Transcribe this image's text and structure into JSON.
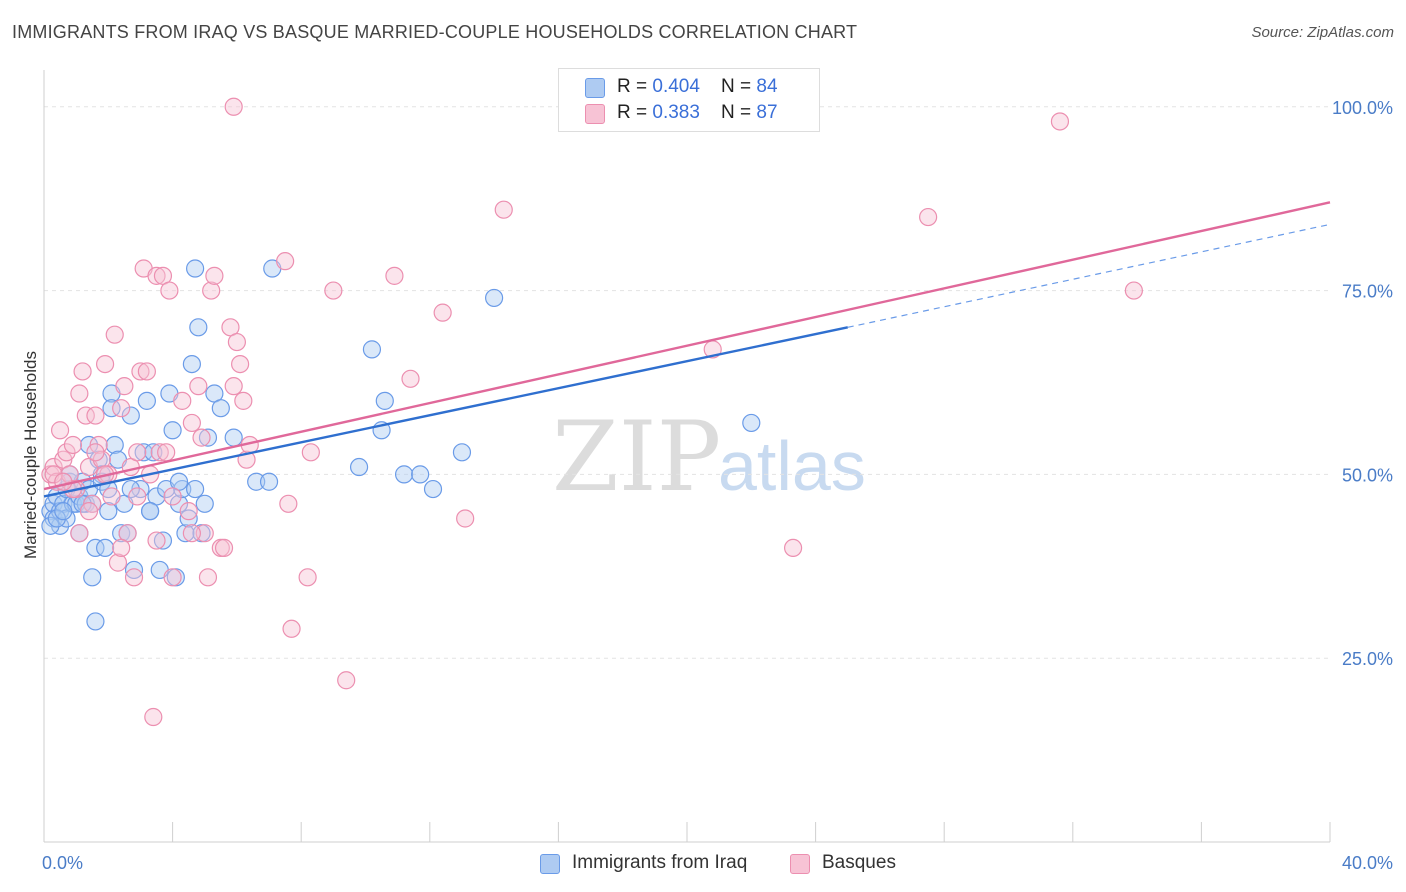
{
  "header": {
    "title": "IMMIGRANTS FROM IRAQ VS BASQUE MARRIED-COUPLE HOUSEHOLDS CORRELATION CHART",
    "source": "Source: ZipAtlas.com"
  },
  "legend": {
    "series1": {
      "r_label": "R = ",
      "r_value": "0.404",
      "n_label": "N = ",
      "n_value": "84"
    },
    "series2": {
      "r_label": "R = ",
      "r_value": "0.383",
      "n_label": "N = ",
      "n_value": "87"
    }
  },
  "watermark": {
    "zip": "ZIP",
    "atlas": "atlas"
  },
  "chart_data": {
    "type": "scatter",
    "title": "IMMIGRANTS FROM IRAQ VS BASQUE MARRIED-COUPLE HOUSEHOLDS CORRELATION CHART",
    "xlabel": "",
    "ylabel": "Married-couple Households",
    "xlim": [
      0,
      40
    ],
    "ylim": [
      0,
      105
    ],
    "x_tick_labels": [
      "0.0%",
      "40.0%"
    ],
    "y_ticks": [
      25,
      50,
      75,
      100
    ],
    "y_tick_labels": [
      "25.0%",
      "50.0%",
      "75.0%",
      "100.0%"
    ],
    "legend_position": "bottom-center",
    "series": [
      {
        "name": "Immigrants from Iraq",
        "color": "#6a9be8",
        "fill": "#aecbf2",
        "trend": {
          "x": [
            0,
            25
          ],
          "y": [
            47,
            70
          ],
          "dashed_extension": {
            "x": [
              25,
              40
            ],
            "y": [
              70,
              84
            ]
          }
        },
        "points": [
          [
            0.2,
            45
          ],
          [
            0.3,
            44
          ],
          [
            0.3,
            46
          ],
          [
            0.4,
            47
          ],
          [
            0.5,
            45
          ],
          [
            0.5,
            43
          ],
          [
            0.6,
            46
          ],
          [
            0.7,
            48
          ],
          [
            0.7,
            44
          ],
          [
            0.8,
            49
          ],
          [
            0.9,
            46
          ],
          [
            1.0,
            46
          ],
          [
            1.1,
            47
          ],
          [
            1.1,
            42
          ],
          [
            1.2,
            49
          ],
          [
            1.3,
            46
          ],
          [
            1.4,
            48
          ],
          [
            1.4,
            54
          ],
          [
            1.5,
            46
          ],
          [
            1.5,
            36
          ],
          [
            1.6,
            30
          ],
          [
            1.6,
            40
          ],
          [
            1.7,
            52
          ],
          [
            1.8,
            50
          ],
          [
            1.8,
            49
          ],
          [
            1.9,
            40
          ],
          [
            2.0,
            45
          ],
          [
            2.1,
            61
          ],
          [
            2.1,
            59
          ],
          [
            2.2,
            54
          ],
          [
            2.3,
            52
          ],
          [
            2.4,
            42
          ],
          [
            2.5,
            46
          ],
          [
            2.6,
            42
          ],
          [
            2.7,
            58
          ],
          [
            2.8,
            37
          ],
          [
            3.0,
            48
          ],
          [
            3.1,
            53
          ],
          [
            3.2,
            60
          ],
          [
            3.3,
            45
          ],
          [
            3.4,
            53
          ],
          [
            3.5,
            47
          ],
          [
            3.6,
            37
          ],
          [
            3.7,
            41
          ],
          [
            3.8,
            48
          ],
          [
            3.9,
            61
          ],
          [
            4.0,
            56
          ],
          [
            4.1,
            36
          ],
          [
            4.2,
            46
          ],
          [
            4.3,
            48
          ],
          [
            4.4,
            42
          ],
          [
            4.5,
            44
          ],
          [
            4.6,
            65
          ],
          [
            4.7,
            78
          ],
          [
            4.7,
            48
          ],
          [
            4.8,
            70
          ],
          [
            4.9,
            42
          ],
          [
            5.0,
            46
          ],
          [
            5.1,
            55
          ],
          [
            5.3,
            61
          ],
          [
            5.5,
            59
          ],
          [
            5.9,
            55
          ],
          [
            6.6,
            49
          ],
          [
            7.0,
            49
          ],
          [
            7.1,
            78
          ],
          [
            9.8,
            51
          ],
          [
            10.2,
            67
          ],
          [
            10.5,
            56
          ],
          [
            10.6,
            60
          ],
          [
            11.2,
            50
          ],
          [
            11.7,
            50
          ],
          [
            12.1,
            48
          ],
          [
            13.0,
            53
          ],
          [
            14.0,
            74
          ],
          [
            22.0,
            57
          ],
          [
            0.2,
            43
          ],
          [
            0.4,
            44
          ],
          [
            0.8,
            50
          ],
          [
            1.2,
            46
          ],
          [
            2.0,
            48
          ],
          [
            2.7,
            48
          ],
          [
            3.3,
            45
          ],
          [
            4.2,
            49
          ],
          [
            0.6,
            45
          ]
        ]
      },
      {
        "name": "Basques",
        "color": "#ec8fb0",
        "fill": "#f7c3d5",
        "trend": {
          "x": [
            0,
            40
          ],
          "y": [
            48,
            87
          ]
        },
        "points": [
          [
            0.2,
            50
          ],
          [
            0.3,
            51
          ],
          [
            0.4,
            49
          ],
          [
            0.5,
            56
          ],
          [
            0.6,
            52
          ],
          [
            0.7,
            53
          ],
          [
            0.8,
            50
          ],
          [
            0.9,
            54
          ],
          [
            1.0,
            48
          ],
          [
            1.1,
            61
          ],
          [
            1.2,
            64
          ],
          [
            1.3,
            58
          ],
          [
            1.4,
            51
          ],
          [
            1.5,
            46
          ],
          [
            1.6,
            58
          ],
          [
            1.7,
            54
          ],
          [
            1.8,
            52
          ],
          [
            1.9,
            65
          ],
          [
            2.0,
            50
          ],
          [
            2.1,
            47
          ],
          [
            2.2,
            69
          ],
          [
            2.3,
            38
          ],
          [
            2.4,
            59
          ],
          [
            2.5,
            62
          ],
          [
            2.6,
            42
          ],
          [
            2.7,
            51
          ],
          [
            2.8,
            36
          ],
          [
            2.9,
            53
          ],
          [
            3.0,
            64
          ],
          [
            3.1,
            78
          ],
          [
            3.2,
            64
          ],
          [
            3.3,
            50
          ],
          [
            3.4,
            17
          ],
          [
            3.5,
            77
          ],
          [
            3.6,
            53
          ],
          [
            3.7,
            77
          ],
          [
            3.8,
            53
          ],
          [
            3.9,
            75
          ],
          [
            4.0,
            36
          ],
          [
            4.3,
            60
          ],
          [
            4.5,
            45
          ],
          [
            4.6,
            57
          ],
          [
            4.8,
            62
          ],
          [
            4.9,
            55
          ],
          [
            5.0,
            42
          ],
          [
            5.1,
            36
          ],
          [
            5.2,
            75
          ],
          [
            5.3,
            77
          ],
          [
            5.5,
            40
          ],
          [
            5.6,
            40
          ],
          [
            5.8,
            70
          ],
          [
            5.9,
            62
          ],
          [
            6.0,
            68
          ],
          [
            6.1,
            65
          ],
          [
            6.2,
            60
          ],
          [
            6.3,
            52
          ],
          [
            6.4,
            54
          ],
          [
            7.5,
            79
          ],
          [
            7.6,
            46
          ],
          [
            7.7,
            29
          ],
          [
            8.2,
            36
          ],
          [
            8.3,
            53
          ],
          [
            9.0,
            75
          ],
          [
            9.4,
            22
          ],
          [
            10.9,
            77
          ],
          [
            11.4,
            63
          ],
          [
            12.4,
            72
          ],
          [
            13.1,
            44
          ],
          [
            14.3,
            86
          ],
          [
            20.8,
            67
          ],
          [
            23.3,
            40
          ],
          [
            27.5,
            85
          ],
          [
            31.6,
            98
          ],
          [
            33.9,
            75
          ],
          [
            5.9,
            100
          ],
          [
            0.3,
            50
          ],
          [
            0.9,
            48
          ],
          [
            1.4,
            45
          ],
          [
            1.9,
            50
          ],
          [
            2.4,
            40
          ],
          [
            2.9,
            47
          ],
          [
            3.5,
            41
          ],
          [
            4.0,
            47
          ],
          [
            4.6,
            42
          ],
          [
            1.1,
            42
          ],
          [
            0.6,
            49
          ],
          [
            1.6,
            53
          ]
        ]
      }
    ]
  }
}
